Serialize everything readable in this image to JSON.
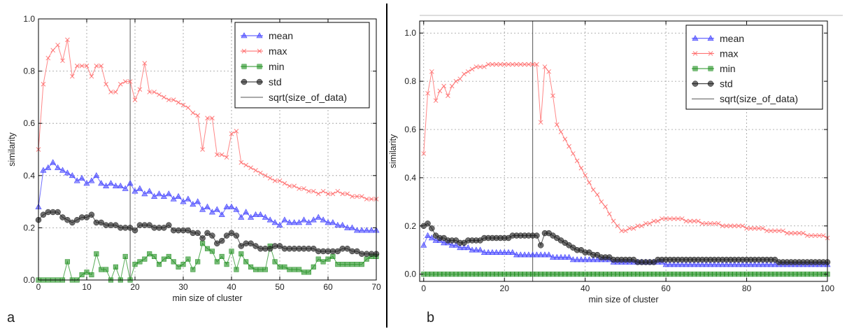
{
  "chart_data": [
    {
      "panel_label": "a",
      "type": "line",
      "xlabel": "min size of cluster",
      "ylabel": "similarity",
      "xlim": [
        0,
        70
      ],
      "ylim": [
        0,
        1.0
      ],
      "xticks": [
        0,
        10,
        20,
        30,
        40,
        50,
        60,
        70
      ],
      "yticks": [
        0.0,
        0.2,
        0.4,
        0.6,
        0.8,
        1.0
      ],
      "ytick_labels": [
        "0.0",
        "0.2",
        "0.4",
        "0.6",
        "0.8",
        "1.0"
      ],
      "grid": true,
      "legend_position": "top-right",
      "vline": {
        "name": "sqrt(size_of_data)",
        "x": 19
      },
      "x": [
        0,
        1,
        2,
        3,
        4,
        5,
        6,
        7,
        8,
        9,
        10,
        11,
        12,
        13,
        14,
        15,
        16,
        17,
        18,
        19,
        20,
        21,
        22,
        23,
        24,
        25,
        26,
        27,
        28,
        29,
        30,
        31,
        32,
        33,
        34,
        35,
        36,
        37,
        38,
        39,
        40,
        41,
        42,
        43,
        44,
        45,
        46,
        47,
        48,
        49,
        50,
        51,
        52,
        53,
        54,
        55,
        56,
        57,
        58,
        59,
        60,
        61,
        62,
        63,
        64,
        65,
        66,
        67,
        68,
        69,
        70
      ],
      "series": [
        {
          "name": "mean",
          "color": "#4040ff",
          "marker": "triangle",
          "values": [
            0.28,
            0.42,
            0.43,
            0.45,
            0.43,
            0.42,
            0.41,
            0.4,
            0.38,
            0.39,
            0.37,
            0.38,
            0.4,
            0.37,
            0.36,
            0.37,
            0.36,
            0.36,
            0.35,
            0.37,
            0.34,
            0.35,
            0.33,
            0.34,
            0.32,
            0.33,
            0.32,
            0.33,
            0.31,
            0.32,
            0.3,
            0.31,
            0.29,
            0.3,
            0.27,
            0.28,
            0.26,
            0.27,
            0.25,
            0.28,
            0.28,
            0.27,
            0.24,
            0.26,
            0.24,
            0.25,
            0.25,
            0.24,
            0.23,
            0.22,
            0.21,
            0.23,
            0.22,
            0.22,
            0.22,
            0.23,
            0.22,
            0.23,
            0.24,
            0.23,
            0.22,
            0.22,
            0.21,
            0.21,
            0.2,
            0.2,
            0.19,
            0.19,
            0.19,
            0.19,
            0.19
          ]
        },
        {
          "name": "max",
          "color": "#ff6060",
          "marker": "x",
          "values": [
            0.5,
            0.75,
            0.85,
            0.88,
            0.9,
            0.84,
            0.92,
            0.78,
            0.82,
            0.82,
            0.82,
            0.78,
            0.82,
            0.82,
            0.75,
            0.72,
            0.72,
            0.75,
            0.76,
            0.76,
            0.69,
            0.73,
            0.83,
            0.72,
            0.72,
            0.71,
            0.7,
            0.69,
            0.69,
            0.68,
            0.67,
            0.66,
            0.64,
            0.63,
            0.5,
            0.62,
            0.62,
            0.48,
            0.48,
            0.47,
            0.56,
            0.57,
            0.45,
            0.44,
            0.43,
            0.42,
            0.41,
            0.4,
            0.39,
            0.38,
            0.38,
            0.37,
            0.36,
            0.36,
            0.35,
            0.35,
            0.34,
            0.34,
            0.33,
            0.34,
            0.33,
            0.33,
            0.34,
            0.33,
            0.33,
            0.32,
            0.32,
            0.32,
            0.31,
            0.31,
            0.31
          ]
        },
        {
          "name": "min",
          "color": "#209020",
          "marker": "square",
          "values": [
            0.0,
            0.0,
            0.0,
            0.0,
            0.0,
            0.0,
            0.07,
            0.0,
            0.0,
            0.02,
            0.03,
            0.02,
            0.1,
            0.04,
            0.04,
            0.0,
            0.05,
            0.0,
            0.09,
            0.0,
            0.06,
            0.07,
            0.08,
            0.1,
            0.09,
            0.06,
            0.08,
            0.09,
            0.07,
            0.05,
            0.06,
            0.08,
            0.04,
            0.07,
            0.14,
            0.12,
            0.11,
            0.07,
            0.09,
            0.06,
            0.11,
            0.04,
            0.1,
            0.07,
            0.05,
            0.04,
            0.04,
            0.04,
            0.13,
            0.07,
            0.05,
            0.05,
            0.04,
            0.04,
            0.04,
            0.03,
            0.03,
            0.05,
            0.08,
            0.07,
            0.08,
            0.09,
            0.06,
            0.06,
            0.06,
            0.06,
            0.06,
            0.06,
            0.08,
            0.09,
            0.09
          ]
        },
        {
          "name": "std",
          "color": "#202020",
          "marker": "circle",
          "values": [
            0.23,
            0.25,
            0.26,
            0.26,
            0.26,
            0.24,
            0.23,
            0.22,
            0.23,
            0.24,
            0.24,
            0.25,
            0.22,
            0.22,
            0.21,
            0.21,
            0.21,
            0.2,
            0.2,
            0.2,
            0.19,
            0.21,
            0.21,
            0.21,
            0.2,
            0.2,
            0.2,
            0.21,
            0.19,
            0.19,
            0.19,
            0.19,
            0.18,
            0.18,
            0.16,
            0.18,
            0.17,
            0.14,
            0.15,
            0.17,
            0.18,
            0.17,
            0.13,
            0.14,
            0.14,
            0.13,
            0.12,
            0.12,
            0.12,
            0.13,
            0.13,
            0.12,
            0.12,
            0.12,
            0.12,
            0.12,
            0.12,
            0.12,
            0.11,
            0.11,
            0.11,
            0.11,
            0.11,
            0.12,
            0.12,
            0.11,
            0.11,
            0.1,
            0.1,
            0.1,
            0.1
          ]
        }
      ]
    },
    {
      "panel_label": "b",
      "type": "line",
      "xlabel": "min size of cluster",
      "ylabel": "similarity",
      "xlim": [
        -1,
        100
      ],
      "ylim": [
        -0.03,
        1.05
      ],
      "xticks": [
        0,
        20,
        40,
        60,
        80,
        100
      ],
      "yticks": [
        0.0,
        0.2,
        0.4,
        0.6,
        0.8,
        1.0
      ],
      "ytick_labels": [
        "0.0",
        "0.2",
        "0.4",
        "0.6",
        "0.8",
        "1.0"
      ],
      "grid": true,
      "legend_position": "top-right",
      "vline": {
        "name": "sqrt(size_of_data)",
        "x": 27
      },
      "x": [
        0,
        1,
        2,
        3,
        4,
        5,
        6,
        7,
        8,
        9,
        10,
        11,
        12,
        13,
        14,
        15,
        16,
        17,
        18,
        19,
        20,
        21,
        22,
        23,
        24,
        25,
        26,
        27,
        28,
        29,
        30,
        31,
        32,
        33,
        34,
        35,
        36,
        37,
        38,
        39,
        40,
        41,
        42,
        43,
        44,
        45,
        46,
        47,
        48,
        49,
        50,
        51,
        52,
        53,
        54,
        55,
        56,
        57,
        58,
        59,
        60,
        61,
        62,
        63,
        64,
        65,
        66,
        67,
        68,
        69,
        70,
        71,
        72,
        73,
        74,
        75,
        76,
        77,
        78,
        79,
        80,
        81,
        82,
        83,
        84,
        85,
        86,
        87,
        88,
        89,
        90,
        91,
        92,
        93,
        94,
        95,
        96,
        97,
        98,
        99,
        100
      ],
      "series": [
        {
          "name": "mean",
          "color": "#4040ff",
          "marker": "triangle",
          "values": [
            0.12,
            0.16,
            0.15,
            0.14,
            0.14,
            0.13,
            0.13,
            0.12,
            0.12,
            0.11,
            0.11,
            0.11,
            0.1,
            0.1,
            0.1,
            0.09,
            0.09,
            0.09,
            0.09,
            0.09,
            0.09,
            0.09,
            0.09,
            0.08,
            0.08,
            0.08,
            0.08,
            0.08,
            0.08,
            0.08,
            0.08,
            0.08,
            0.07,
            0.07,
            0.07,
            0.07,
            0.07,
            0.06,
            0.06,
            0.06,
            0.06,
            0.06,
            0.06,
            0.06,
            0.06,
            0.06,
            0.06,
            0.05,
            0.05,
            0.05,
            0.05,
            0.05,
            0.05,
            0.05,
            0.05,
            0.05,
            0.05,
            0.05,
            0.05,
            0.05,
            0.04,
            0.04,
            0.04,
            0.04,
            0.04,
            0.04,
            0.04,
            0.04,
            0.04,
            0.04,
            0.04,
            0.04,
            0.04,
            0.04,
            0.04,
            0.04,
            0.04,
            0.04,
            0.04,
            0.04,
            0.04,
            0.04,
            0.04,
            0.04,
            0.04,
            0.04,
            0.04,
            0.04,
            0.04,
            0.04,
            0.04,
            0.04,
            0.04,
            0.04,
            0.04,
            0.04,
            0.04,
            0.04,
            0.04,
            0.04,
            0.04
          ]
        },
        {
          "name": "max",
          "color": "#ff6060",
          "marker": "x",
          "values": [
            0.5,
            0.75,
            0.84,
            0.72,
            0.76,
            0.78,
            0.74,
            0.78,
            0.8,
            0.81,
            0.83,
            0.84,
            0.85,
            0.86,
            0.86,
            0.86,
            0.87,
            0.87,
            0.87,
            0.87,
            0.87,
            0.87,
            0.87,
            0.87,
            0.87,
            0.87,
            0.87,
            0.87,
            0.87,
            0.63,
            0.86,
            0.84,
            0.74,
            0.62,
            0.59,
            0.56,
            0.53,
            0.5,
            0.47,
            0.44,
            0.41,
            0.38,
            0.35,
            0.33,
            0.3,
            0.28,
            0.25,
            0.22,
            0.2,
            0.18,
            0.18,
            0.19,
            0.19,
            0.2,
            0.2,
            0.21,
            0.21,
            0.22,
            0.22,
            0.23,
            0.23,
            0.23,
            0.23,
            0.23,
            0.23,
            0.22,
            0.22,
            0.22,
            0.22,
            0.21,
            0.21,
            0.21,
            0.21,
            0.21,
            0.2,
            0.2,
            0.2,
            0.2,
            0.2,
            0.2,
            0.19,
            0.19,
            0.19,
            0.19,
            0.19,
            0.18,
            0.18,
            0.18,
            0.18,
            0.18,
            0.17,
            0.17,
            0.17,
            0.17,
            0.17,
            0.16,
            0.16,
            0.16,
            0.16,
            0.16,
            0.15
          ]
        },
        {
          "name": "min",
          "color": "#209020",
          "marker": "square",
          "values": [
            0.0,
            0.0,
            0.0,
            0.0,
            0.0,
            0.0,
            0.0,
            0.0,
            0.0,
            0.0,
            0.0,
            0.0,
            0.0,
            0.0,
            0.0,
            0.0,
            0.0,
            0.0,
            0.0,
            0.0,
            0.0,
            0.0,
            0.0,
            0.0,
            0.0,
            0.0,
            0.0,
            0.0,
            0.0,
            0.0,
            0.0,
            0.0,
            0.0,
            0.0,
            0.0,
            0.0,
            0.0,
            0.0,
            0.0,
            0.0,
            0.0,
            0.0,
            0.0,
            0.0,
            0.0,
            0.0,
            0.0,
            0.0,
            0.0,
            0.0,
            0.0,
            0.0,
            0.0,
            0.0,
            0.0,
            0.0,
            0.0,
            0.0,
            0.0,
            0.0,
            0.0,
            0.0,
            0.0,
            0.0,
            0.0,
            0.0,
            0.0,
            0.0,
            0.0,
            0.0,
            0.0,
            0.0,
            0.0,
            0.0,
            0.0,
            0.0,
            0.0,
            0.0,
            0.0,
            0.0,
            0.0,
            0.0,
            0.0,
            0.0,
            0.0,
            0.0,
            0.0,
            0.0,
            0.0,
            0.0,
            0.0,
            0.0,
            0.0,
            0.0,
            0.0,
            0.0,
            0.0,
            0.0,
            0.0,
            0.0,
            0.0
          ]
        },
        {
          "name": "std",
          "color": "#202020",
          "marker": "circle",
          "values": [
            0.2,
            0.21,
            0.19,
            0.16,
            0.15,
            0.15,
            0.14,
            0.14,
            0.14,
            0.13,
            0.13,
            0.14,
            0.14,
            0.14,
            0.14,
            0.15,
            0.15,
            0.15,
            0.15,
            0.15,
            0.15,
            0.15,
            0.16,
            0.16,
            0.16,
            0.16,
            0.16,
            0.16,
            0.16,
            0.12,
            0.17,
            0.17,
            0.16,
            0.15,
            0.14,
            0.13,
            0.12,
            0.11,
            0.1,
            0.1,
            0.09,
            0.09,
            0.08,
            0.08,
            0.07,
            0.07,
            0.07,
            0.06,
            0.06,
            0.06,
            0.06,
            0.06,
            0.06,
            0.05,
            0.05,
            0.05,
            0.05,
            0.05,
            0.06,
            0.06,
            0.06,
            0.06,
            0.06,
            0.06,
            0.06,
            0.06,
            0.06,
            0.06,
            0.06,
            0.06,
            0.06,
            0.06,
            0.06,
            0.06,
            0.06,
            0.06,
            0.06,
            0.06,
            0.06,
            0.06,
            0.06,
            0.06,
            0.06,
            0.06,
            0.06,
            0.06,
            0.06,
            0.06,
            0.05,
            0.05,
            0.05,
            0.05,
            0.05,
            0.05,
            0.05,
            0.05,
            0.05,
            0.05,
            0.05,
            0.05,
            0.05
          ]
        }
      ]
    }
  ]
}
